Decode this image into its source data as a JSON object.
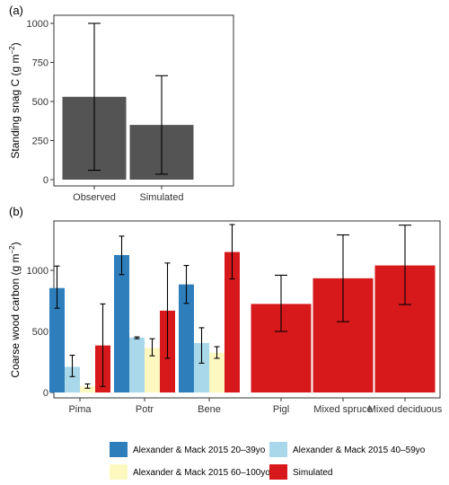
{
  "chart_data": [
    {
      "panel": "(a)",
      "type": "bar",
      "ylabel_main": "Standing snag C",
      "ylabel_unit": "(g m",
      "ylabel_exp": "−2",
      "ylabel_close": ")",
      "ylim": [
        0,
        1050
      ],
      "yticks": [
        0,
        250,
        500,
        750,
        1000
      ],
      "categories": [
        "Observed",
        "Simulated"
      ],
      "values": [
        530,
        350
      ],
      "err_low": [
        60,
        35
      ],
      "err_high": [
        1000,
        665
      ],
      "color": "#545454"
    },
    {
      "panel": "(b)",
      "type": "bar",
      "ylabel_main": "Coarse wood carbon",
      "ylabel_unit": "(g m",
      "ylabel_exp": "−2",
      "ylabel_close": ")",
      "ylim": [
        0,
        1400
      ],
      "yticks": [
        0,
        500,
        1000
      ],
      "categories": [
        "Pima",
        "Potr",
        "Bene",
        "Pigl",
        "Mixed spruce",
        "Mixed deciduous"
      ],
      "series": [
        {
          "name": "Alexander & Mack 2015 20–39yo",
          "color": "#2e7ebc",
          "values": [
            855,
            1125,
            885,
            null,
            null,
            null
          ],
          "err_low": [
            690,
            965,
            730,
            null,
            null,
            null
          ],
          "err_high": [
            1035,
            1280,
            1040,
            null,
            null,
            null
          ]
        },
        {
          "name": "Alexander & Mack 2015 40–59yo",
          "color": "#a8d8ea",
          "values": [
            210,
            450,
            405,
            null,
            null,
            null
          ],
          "err_low": [
            130,
            440,
            240,
            null,
            null,
            null
          ],
          "err_high": [
            305,
            455,
            530,
            null,
            null,
            null
          ]
        },
        {
          "name": "Alexander & Mack 2015 60–100yo",
          "color": "#fdf8c0",
          "values": [
            50,
            365,
            325,
            null,
            null,
            null
          ],
          "err_low": [
            35,
            300,
            280,
            null,
            null,
            null
          ],
          "err_high": [
            70,
            440,
            375,
            null,
            null,
            null
          ]
        },
        {
          "name": "Simulated",
          "color": "#d7191c",
          "values": [
            385,
            670,
            1150,
            725,
            935,
            1040
          ],
          "err_low": [
            50,
            280,
            930,
            500,
            580,
            720
          ],
          "err_high": [
            725,
            1060,
            1375,
            960,
            1290,
            1370
          ]
        }
      ],
      "legend_position": "bottom"
    }
  ]
}
